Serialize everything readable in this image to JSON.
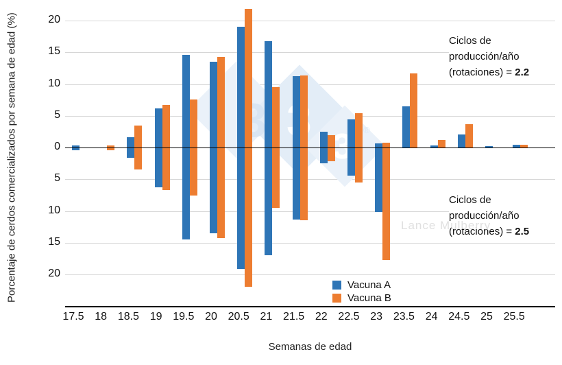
{
  "chart_data": {
    "type": "bar",
    "title": "",
    "xlabel": "Semanas de edad",
    "ylabel": "Porcentaje de cerdos comercializados por semana de edad (%)",
    "categories": [
      "17.5",
      "18",
      "18.5",
      "19",
      "19.5",
      "20",
      "20.5",
      "21",
      "21.5",
      "22",
      "22.5",
      "23",
      "23.5",
      "24",
      "24.5",
      "25",
      "25.5"
    ],
    "y_ticks_signed": [
      20,
      15,
      10,
      5,
      0,
      -5,
      -10,
      -15,
      -20
    ],
    "ylim": [
      -22.5,
      22.5
    ],
    "grid": true,
    "legend_position": "bottom-center",
    "panels": [
      {
        "label": "Ciclos de produccion/anio (rotaciones) = 2.2",
        "direction": "up",
        "series": [
          {
            "name": "Vacuna A",
            "color": "#2E75B6",
            "values": [
              0.35,
              0,
              1.6,
              6.2,
              14.6,
              13.5,
              19.0,
              16.8,
              11.2,
              2.5,
              4.4,
              0.7,
              6.5,
              0.35,
              2.1,
              0.25,
              0.45
            ]
          },
          {
            "name": "Vacuna B",
            "color": "#ED7D31",
            "values": [
              0,
              0.3,
              3.5,
              6.7,
              7.6,
              14.3,
              21.8,
              9.5,
              11.3,
              2.0,
              5.4,
              0.8,
              11.7,
              1.2,
              3.7,
              0,
              0.4
            ]
          }
        ]
      },
      {
        "label": "Ciclos de produccion/anio (rotaciones) = 2.5",
        "direction": "down",
        "series": [
          {
            "name": "Vacuna A",
            "color": "#2E75B6",
            "values": [
              0.3,
              0,
              1.5,
              6.2,
              14.4,
              13.4,
              19.0,
              16.9,
              11.2,
              2.4,
              4.3,
              10.0,
              0,
              0,
              0,
              0,
              0
            ]
          },
          {
            "name": "Vacuna B",
            "color": "#ED7D31",
            "values": [
              0,
              0.3,
              3.4,
              6.6,
              7.5,
              14.2,
              21.8,
              9.4,
              11.4,
              2.0,
              5.4,
              17.6,
              0,
              0,
              0,
              0,
              0
            ]
          }
        ]
      }
    ],
    "annotations": [
      {
        "line1": "Ciclos de",
        "line2": "producción/año",
        "line3_prefix": "(rotaciones) = ",
        "value": "2.2"
      },
      {
        "line1": "Ciclos de",
        "line2": "producción/año",
        "line3_prefix": "(rotaciones) = ",
        "value": "2.5"
      }
    ]
  },
  "legend": {
    "items": [
      {
        "label": "Vacuna A",
        "color": "#2E75B6"
      },
      {
        "label": "Vacuna B",
        "color": "#ED7D31"
      }
    ]
  },
  "watermark": {
    "text": "Lance Mulberry",
    "logo_digit": "3",
    "registered": "®",
    "diamond_color_light": "#EAF1F9",
    "diamond_color_mid": "#E3EDF7",
    "digit_shadow_color": "#D8E5F3"
  },
  "colors": {
    "grid": "#D6D6D6",
    "axis": "#000000",
    "background": "#FFFFFF"
  }
}
